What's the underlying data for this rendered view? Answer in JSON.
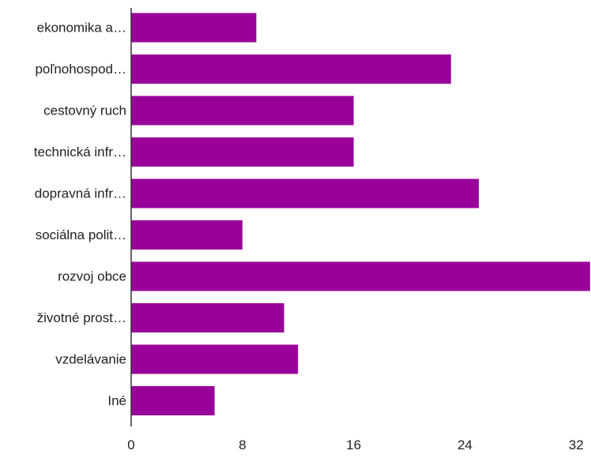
{
  "chart_data": {
    "type": "bar",
    "orientation": "horizontal",
    "categories": [
      "ekonomika a…",
      "poľnohospod…",
      "cestovný ruch",
      "technická infr…",
      "dopravná infr…",
      "sociálna polit…",
      "rozvoj obce",
      "životné prost…",
      "vzdelávanie",
      "Iné"
    ],
    "values": [
      9,
      23,
      16,
      16,
      25,
      8,
      33,
      11,
      12,
      6
    ],
    "xlim": [
      0,
      32
    ],
    "xticks": [
      "0",
      "8",
      "16",
      "24",
      "32"
    ],
    "grid": false,
    "legend": false,
    "title": "",
    "xlabel": "",
    "ylabel": "",
    "colors": {
      "bar": "#990099",
      "axis": "#333333",
      "text": "#222222"
    }
  }
}
